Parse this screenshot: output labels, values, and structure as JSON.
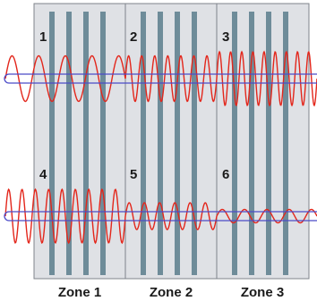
{
  "zones": [
    {
      "label": "Zone 1"
    },
    {
      "label": "Zone 2"
    },
    {
      "label": "Zone 3"
    }
  ],
  "panels": [
    {
      "number": "1",
      "wave_amplitude": 0.85,
      "wave_cycles": 4.5
    },
    {
      "number": "2",
      "wave_amplitude": 0.85,
      "wave_cycles": 7
    },
    {
      "number": "3",
      "wave_amplitude": 1.0,
      "wave_cycles": 9
    },
    {
      "number": "4",
      "wave_amplitude": 1.0,
      "wave_cycles": 9
    },
    {
      "number": "5",
      "wave_amplitude": 0.5,
      "wave_cycles": 6
    },
    {
      "number": "6",
      "wave_amplitude": 0.25,
      "wave_cycles": 4.5
    }
  ],
  "colors": {
    "panel_fill": "#dfe1e5",
    "panel_border": "#7f848b",
    "bar": "#6e8c99",
    "wave": "#e3261b",
    "guide_line": "#4b4bc8"
  }
}
